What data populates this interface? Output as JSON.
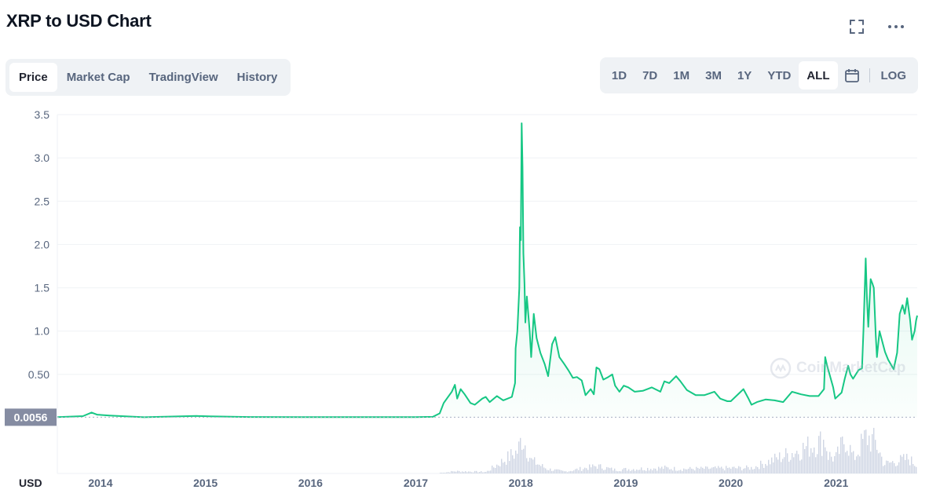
{
  "header": {
    "title": "XRP to USD Chart"
  },
  "tabs": [
    {
      "label": "Price",
      "active": true
    },
    {
      "label": "Market Cap",
      "active": false
    },
    {
      "label": "TradingView",
      "active": false
    },
    {
      "label": "History",
      "active": false
    }
  ],
  "ranges": [
    {
      "label": "1D",
      "active": false
    },
    {
      "label": "7D",
      "active": false
    },
    {
      "label": "1M",
      "active": false
    },
    {
      "label": "3M",
      "active": false
    },
    {
      "label": "1Y",
      "active": false
    },
    {
      "label": "YTD",
      "active": false
    },
    {
      "label": "ALL",
      "active": true
    }
  ],
  "log_label": "LOG",
  "watermark": "CoinMarketCap",
  "icons": {
    "expand": "expand-icon",
    "more": "more-icon",
    "calendar": "calendar-icon"
  },
  "colors": {
    "line": "#16c784",
    "baseline_label_bg": "#858ca2",
    "volume": "#cfd6e4",
    "grid": "#eff2f5",
    "axis_text": "#58667e"
  },
  "chart_data": {
    "type": "area",
    "currency_label": "USD",
    "current_price_label": "0.0056",
    "baseline": 0.0056,
    "ylim": [
      0,
      3.5
    ],
    "y_ticks": [
      {
        "value": 0.5,
        "label": "0.50"
      },
      {
        "value": 1.0,
        "label": "1.0"
      },
      {
        "value": 1.5,
        "label": "1.5"
      },
      {
        "value": 2.0,
        "label": "2.0"
      },
      {
        "value": 2.5,
        "label": "2.5"
      },
      {
        "value": 3.0,
        "label": "3.0"
      },
      {
        "value": 3.5,
        "label": "3.5"
      }
    ],
    "x_range": [
      "2013-08-04",
      "2021-10-10"
    ],
    "x_ticks": [
      {
        "date": "2014-01-01",
        "label": "2014"
      },
      {
        "date": "2015-01-01",
        "label": "2015"
      },
      {
        "date": "2016-01-01",
        "label": "2016"
      },
      {
        "date": "2017-01-01",
        "label": "2017"
      },
      {
        "date": "2018-01-01",
        "label": "2018"
      },
      {
        "date": "2019-01-01",
        "label": "2019"
      },
      {
        "date": "2020-01-01",
        "label": "2020"
      },
      {
        "date": "2021-01-01",
        "label": "2021"
      }
    ],
    "series": [
      {
        "points": [
          [
            "2013-08-04",
            0.006
          ],
          [
            "2013-11-01",
            0.018
          ],
          [
            "2013-12-01",
            0.06
          ],
          [
            "2013-12-20",
            0.035
          ],
          [
            "2014-02-01",
            0.025
          ],
          [
            "2014-06-01",
            0.005
          ],
          [
            "2014-12-01",
            0.02
          ],
          [
            "2015-01-15",
            0.015
          ],
          [
            "2015-06-01",
            0.008
          ],
          [
            "2016-01-01",
            0.006
          ],
          [
            "2016-06-01",
            0.006
          ],
          [
            "2017-01-01",
            0.006
          ],
          [
            "2017-03-01",
            0.01
          ],
          [
            "2017-03-25",
            0.05
          ],
          [
            "2017-04-08",
            0.17
          ],
          [
            "2017-05-06",
            0.3
          ],
          [
            "2017-05-17",
            0.38
          ],
          [
            "2017-05-25",
            0.22
          ],
          [
            "2017-06-06",
            0.33
          ],
          [
            "2017-06-20",
            0.27
          ],
          [
            "2017-07-10",
            0.17
          ],
          [
            "2017-07-25",
            0.15
          ],
          [
            "2017-08-20",
            0.22
          ],
          [
            "2017-09-01",
            0.24
          ],
          [
            "2017-09-15",
            0.18
          ],
          [
            "2017-10-10",
            0.25
          ],
          [
            "2017-11-01",
            0.2
          ],
          [
            "2017-12-01",
            0.24
          ],
          [
            "2017-12-12",
            0.4
          ],
          [
            "2017-12-14",
            0.8
          ],
          [
            "2017-12-20",
            1.0
          ],
          [
            "2017-12-27",
            1.5
          ],
          [
            "2017-12-29",
            2.2
          ],
          [
            "2018-01-01",
            2.05
          ],
          [
            "2018-01-04",
            3.4
          ],
          [
            "2018-01-07",
            2.9
          ],
          [
            "2018-01-10",
            1.9
          ],
          [
            "2018-01-14",
            1.55
          ],
          [
            "2018-01-17",
            1.1
          ],
          [
            "2018-01-22",
            1.4
          ],
          [
            "2018-02-01",
            1.0
          ],
          [
            "2018-02-06",
            0.7
          ],
          [
            "2018-02-15",
            1.2
          ],
          [
            "2018-02-25",
            0.92
          ],
          [
            "2018-03-10",
            0.75
          ],
          [
            "2018-03-25",
            0.62
          ],
          [
            "2018-04-06",
            0.48
          ],
          [
            "2018-04-20",
            0.85
          ],
          [
            "2018-05-01",
            0.93
          ],
          [
            "2018-05-15",
            0.7
          ],
          [
            "2018-06-01",
            0.62
          ],
          [
            "2018-06-15",
            0.55
          ],
          [
            "2018-07-01",
            0.46
          ],
          [
            "2018-07-15",
            0.47
          ],
          [
            "2018-08-01",
            0.43
          ],
          [
            "2018-08-14",
            0.26
          ],
          [
            "2018-09-01",
            0.33
          ],
          [
            "2018-09-12",
            0.27
          ],
          [
            "2018-09-21",
            0.58
          ],
          [
            "2018-10-01",
            0.56
          ],
          [
            "2018-10-15",
            0.44
          ],
          [
            "2018-11-01",
            0.47
          ],
          [
            "2018-11-15",
            0.5
          ],
          [
            "2018-11-25",
            0.37
          ],
          [
            "2018-12-10",
            0.3
          ],
          [
            "2018-12-25",
            0.37
          ],
          [
            "2019-01-10",
            0.35
          ],
          [
            "2019-02-01",
            0.3
          ],
          [
            "2019-03-01",
            0.31
          ],
          [
            "2019-04-01",
            0.35
          ],
          [
            "2019-05-01",
            0.3
          ],
          [
            "2019-05-15",
            0.42
          ],
          [
            "2019-06-01",
            0.4
          ],
          [
            "2019-06-25",
            0.48
          ],
          [
            "2019-07-10",
            0.42
          ],
          [
            "2019-08-01",
            0.32
          ],
          [
            "2019-09-01",
            0.26
          ],
          [
            "2019-10-01",
            0.26
          ],
          [
            "2019-11-05",
            0.3
          ],
          [
            "2019-11-25",
            0.22
          ],
          [
            "2019-12-20",
            0.19
          ],
          [
            "2020-01-01",
            0.19
          ],
          [
            "2020-02-14",
            0.33
          ],
          [
            "2020-03-01",
            0.23
          ],
          [
            "2020-03-13",
            0.15
          ],
          [
            "2020-04-01",
            0.18
          ],
          [
            "2020-05-01",
            0.21
          ],
          [
            "2020-06-01",
            0.2
          ],
          [
            "2020-07-01",
            0.18
          ],
          [
            "2020-08-01",
            0.3
          ],
          [
            "2020-09-01",
            0.27
          ],
          [
            "2020-10-01",
            0.25
          ],
          [
            "2020-11-01",
            0.25
          ],
          [
            "2020-11-20",
            0.33
          ],
          [
            "2020-11-24",
            0.7
          ],
          [
            "2020-12-01",
            0.6
          ],
          [
            "2020-12-22",
            0.35
          ],
          [
            "2020-12-29",
            0.22
          ],
          [
            "2021-01-20",
            0.29
          ],
          [
            "2021-01-31",
            0.45
          ],
          [
            "2021-02-12",
            0.6
          ],
          [
            "2021-02-20",
            0.5
          ],
          [
            "2021-03-01",
            0.45
          ],
          [
            "2021-03-20",
            0.55
          ],
          [
            "2021-04-01",
            0.57
          ],
          [
            "2021-04-06",
            1.0
          ],
          [
            "2021-04-14",
            1.84
          ],
          [
            "2021-04-18",
            1.4
          ],
          [
            "2021-04-23",
            1.05
          ],
          [
            "2021-05-01",
            1.6
          ],
          [
            "2021-05-07",
            1.55
          ],
          [
            "2021-05-12",
            1.5
          ],
          [
            "2021-05-19",
            0.95
          ],
          [
            "2021-05-23",
            0.7
          ],
          [
            "2021-06-01",
            1.0
          ],
          [
            "2021-06-20",
            0.76
          ],
          [
            "2021-07-01",
            0.67
          ],
          [
            "2021-07-20",
            0.56
          ],
          [
            "2021-08-01",
            0.75
          ],
          [
            "2021-08-10",
            1.2
          ],
          [
            "2021-08-20",
            1.3
          ],
          [
            "2021-08-28",
            1.2
          ],
          [
            "2021-09-05",
            1.38
          ],
          [
            "2021-09-15",
            1.14
          ],
          [
            "2021-09-22",
            0.9
          ],
          [
            "2021-10-01",
            1.0
          ],
          [
            "2021-10-06",
            1.12
          ],
          [
            "2021-10-10",
            1.18
          ]
        ]
      }
    ],
    "volume_series": [
      [
        "2013-08-04",
        0
      ],
      [
        "2017-03-15",
        0
      ],
      [
        "2017-05-15",
        0.06
      ],
      [
        "2017-09-01",
        0.04
      ],
      [
        "2017-12-20",
        0.6
      ],
      [
        "2018-01-04",
        1.0
      ],
      [
        "2018-02-05",
        0.35
      ],
      [
        "2018-04-01",
        0.12
      ],
      [
        "2018-06-01",
        0.05
      ],
      [
        "2018-09-21",
        0.2
      ],
      [
        "2018-11-20",
        0.1
      ],
      [
        "2019-05-15",
        0.15
      ],
      [
        "2019-07-01",
        0.12
      ],
      [
        "2020-03-13",
        0.15
      ],
      [
        "2020-11-24",
        0.9
      ],
      [
        "2020-12-01",
        0.5
      ],
      [
        "2020-12-29",
        0.4
      ],
      [
        "2021-02-01",
        0.95
      ],
      [
        "2021-03-01",
        0.4
      ],
      [
        "2021-04-14",
        1.0
      ],
      [
        "2021-05-19",
        0.8
      ],
      [
        "2021-06-15",
        0.25
      ],
      [
        "2021-08-10",
        0.35
      ],
      [
        "2021-09-07",
        0.4
      ],
      [
        "2021-10-10",
        0.2
      ]
    ]
  }
}
